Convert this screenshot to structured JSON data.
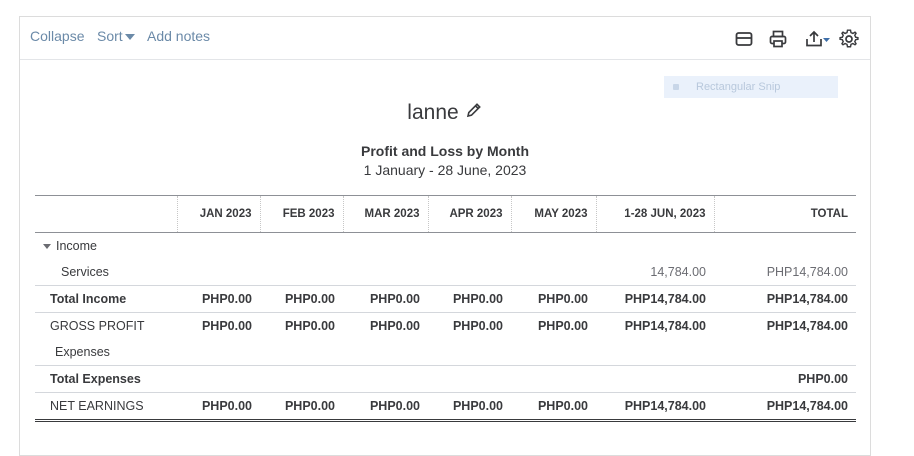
{
  "toolbar": {
    "collapse": "Collapse",
    "sort": "Sort",
    "add_notes": "Add notes"
  },
  "snip": {
    "label": "Rectangular Snip"
  },
  "report": {
    "company": "lanne",
    "title": "Profit and Loss by Month",
    "date_range": "1 January - 28 June, 2023"
  },
  "table": {
    "columns": [
      "",
      "JAN 2023",
      "FEB 2023",
      "MAR 2023",
      "APR 2023",
      "MAY 2023",
      "1-28 JUN, 2023",
      "TOTAL"
    ],
    "income_label": "Income",
    "services": {
      "label": "Services",
      "values": [
        "",
        "",
        "",
        "",
        "",
        "14,784.00",
        "PHP14,784.00"
      ]
    },
    "total_income": {
      "label": "Total Income",
      "values": [
        "PHP0.00",
        "PHP0.00",
        "PHP0.00",
        "PHP0.00",
        "PHP0.00",
        "PHP14,784.00",
        "PHP14,784.00"
      ]
    },
    "gross_profit": {
      "label": "GROSS PROFIT",
      "values": [
        "PHP0.00",
        "PHP0.00",
        "PHP0.00",
        "PHP0.00",
        "PHP0.00",
        "PHP14,784.00",
        "PHP14,784.00"
      ]
    },
    "expenses_label": "Expenses",
    "total_expenses": {
      "label": "Total Expenses",
      "values": [
        "",
        "",
        "",
        "",
        "",
        "",
        "PHP0.00"
      ]
    },
    "net_earnings": {
      "label": "NET EARNINGS",
      "values": [
        "PHP0.00",
        "PHP0.00",
        "PHP0.00",
        "PHP0.00",
        "PHP0.00",
        "PHP14,784.00",
        "PHP14,784.00"
      ]
    }
  },
  "icons": [
    "email-icon",
    "print-icon",
    "export-icon",
    "settings-icon",
    "edit-pencil-icon"
  ]
}
